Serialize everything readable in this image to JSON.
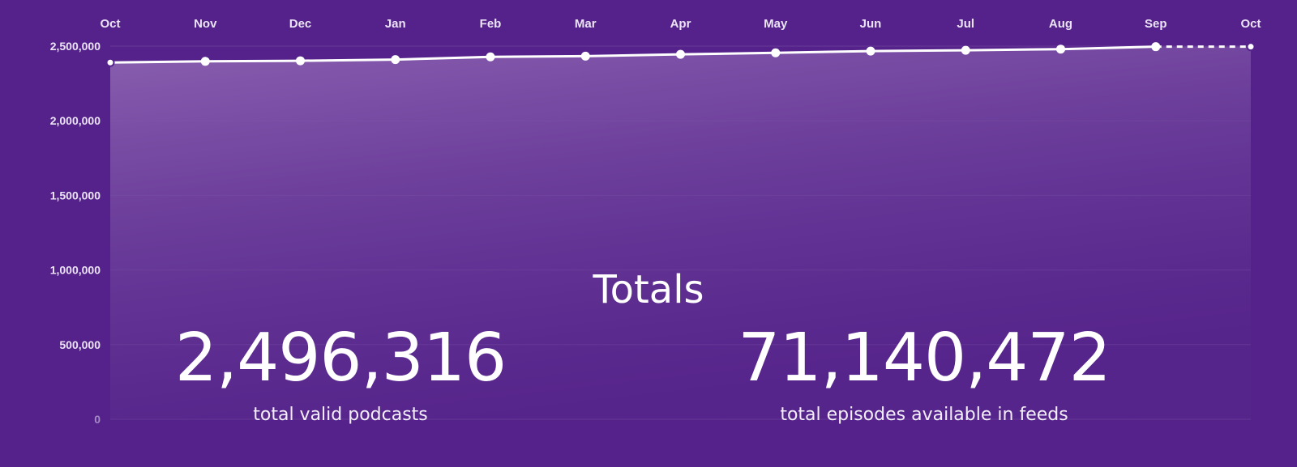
{
  "chart_data": {
    "type": "area",
    "categories": [
      "Oct",
      "Nov",
      "Dec",
      "Jan",
      "Feb",
      "Mar",
      "Apr",
      "May",
      "Jun",
      "Jul",
      "Aug",
      "Sep",
      "Oct"
    ],
    "values": [
      2390000,
      2398000,
      2402000,
      2410000,
      2428000,
      2433000,
      2445000,
      2455000,
      2467000,
      2472000,
      2480000,
      2496316,
      2496316
    ],
    "projected_from_index": 11,
    "ylim": [
      0,
      2500000
    ],
    "yticks": [
      "2,500,000",
      "2,000,000",
      "1,500,000",
      "1,000,000",
      "500,000",
      "0"
    ],
    "ytick_values": [
      2500000,
      2000000,
      1500000,
      1000000,
      500000,
      0
    ],
    "grid": true,
    "xaxis_position": "top",
    "title": "",
    "xlabel": "",
    "ylabel": ""
  },
  "colors": {
    "background": "#54228a",
    "line": "#ffffff",
    "area_top": "#8a60b0",
    "area_bottom": "#5a2a8e"
  },
  "totals": {
    "title": "Totals",
    "podcasts_value": "2,496,316",
    "podcasts_label": "total valid podcasts",
    "episodes_value": "71,140,472",
    "episodes_label": "total episodes available in feeds"
  }
}
